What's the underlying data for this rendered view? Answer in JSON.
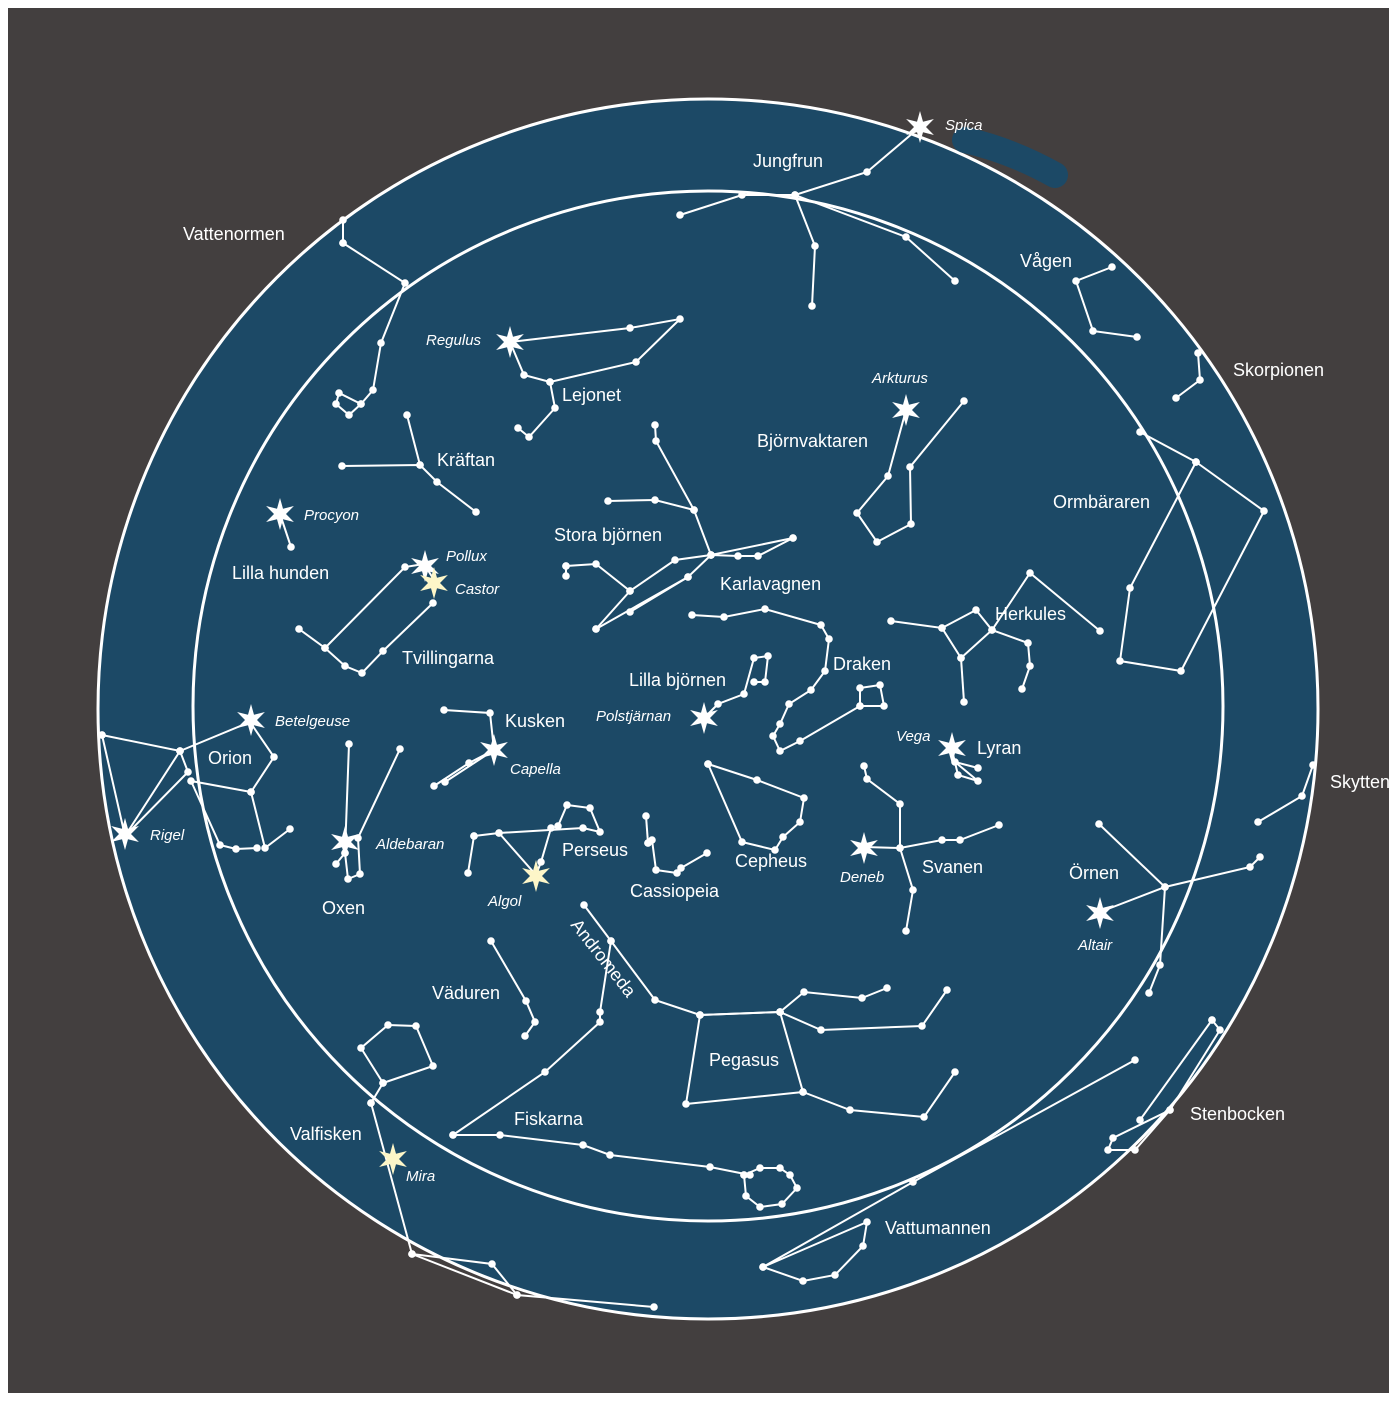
{
  "colors": {
    "background": "#433f3f",
    "sky": "#1c4966",
    "ink": "#ffffff",
    "highlight_star": "#fdf6c8"
  },
  "constellations": {
    "vattenormen": "Vattenormen",
    "jungfrun": "Jungfrun",
    "vagen": "Vågen",
    "skorpionen": "Skorpionen",
    "lejonet": "Lejonet",
    "kraftan": "Kräftan",
    "bjornvaktaren": "Björnvaktaren",
    "ormbararen": "Ormbäraren",
    "lilla_hunden": "Lilla hunden",
    "stora_bjornen": "Stora björnen",
    "karlavagnen": "Karlavagnen",
    "herkules": "Herkules",
    "tvillingarna": "Tvillingarna",
    "draken": "Draken",
    "lilla_bjornen": "Lilla björnen",
    "kusken": "Kusken",
    "lyran": "Lyran",
    "orion": "Orion",
    "skytten": "Skytten",
    "perseus": "Perseus",
    "cepheus": "Cepheus",
    "svanen": "Svanen",
    "ornen": "Örnen",
    "oxen": "Oxen",
    "cassiopeia": "Cassiopeia",
    "andromeda": "Andromeda",
    "vaduren": "Väduren",
    "pegasus": "Pegasus",
    "stenbocken": "Stenbocken",
    "fiskarna": "Fiskarna",
    "valfisken": "Valfisken",
    "vattumannen": "Vattumannen"
  },
  "stars": {
    "spica": "Spica",
    "regulus": "Regulus",
    "arkturus": "Arkturus",
    "procyon": "Procyon",
    "pollux": "Pollux",
    "castor": "Castor",
    "polstjarnan": "Polstjärnan",
    "betelgeuse": "Betelgeuse",
    "capella": "Capella",
    "vega": "Vega",
    "rigel": "Rigel",
    "aldebaran": "Aldebaran",
    "deneb": "Deneb",
    "algol": "Algol",
    "altair": "Altair",
    "mira": "Mira"
  }
}
